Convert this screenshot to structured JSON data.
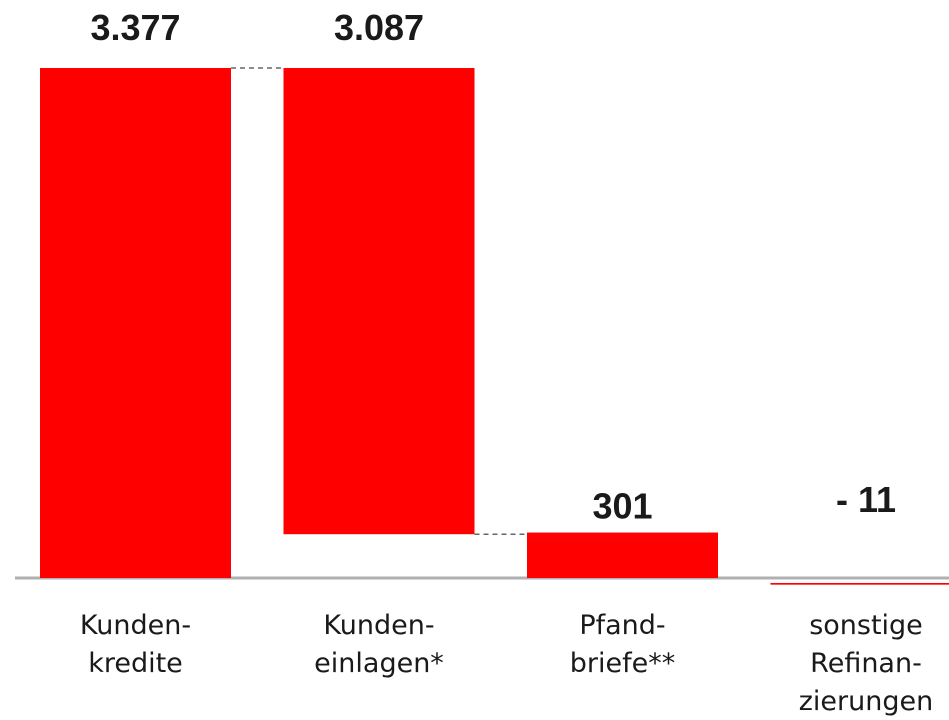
{
  "chart_data": {
    "type": "waterfall",
    "categories": [
      [
        "Kunden-",
        "kredite"
      ],
      [
        "Kunden-",
        "einlagen*"
      ],
      [
        "Pfand-",
        "briefe**"
      ],
      [
        "sonstige",
        "Refinan-",
        "zierungen"
      ]
    ],
    "values": [
      3377,
      3087,
      301,
      -11
    ],
    "value_labels": [
      "3.377",
      "3.087",
      "301",
      "- 11"
    ],
    "color": "#ff0000"
  }
}
